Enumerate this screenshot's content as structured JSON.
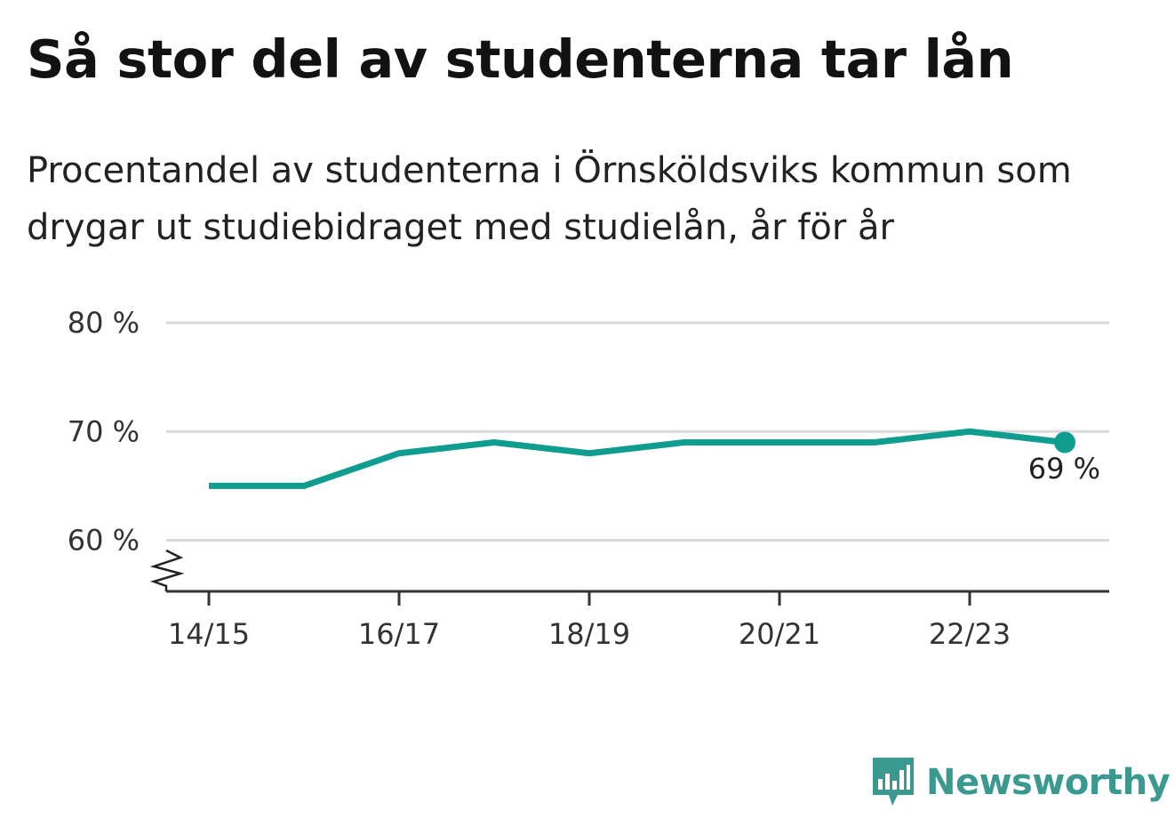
{
  "title": "Så stor del av studenterna tar lån",
  "subtitle": "Procentandel av studenterna i Örnsköldsviks kommun som drygar ut studiebidraget med studielån, år för år",
  "brand": {
    "name": "Newsworthy",
    "color": "#3a9a8f",
    "icon": "newsworthy-logo-icon"
  },
  "chart_data": {
    "type": "line",
    "x": [
      "14/15",
      "15/16",
      "16/17",
      "17/18",
      "18/19",
      "19/20",
      "20/21",
      "21/22",
      "22/23",
      "23/24"
    ],
    "xticks": [
      "14/15",
      "16/17",
      "18/19",
      "20/21",
      "22/23"
    ],
    "series": [
      {
        "values": [
          65,
          65,
          68,
          69,
          68,
          69,
          69,
          69,
          70,
          69
        ],
        "color": "#0f9d8f"
      }
    ],
    "yticks": [
      60,
      70,
      80
    ],
    "ytick_labels": [
      "60 %",
      "70 %",
      "80 %"
    ],
    "ylim": [
      55.3,
      80
    ],
    "y_axis_break": true,
    "end_label": "69 %",
    "grid": true,
    "legend": "none"
  }
}
